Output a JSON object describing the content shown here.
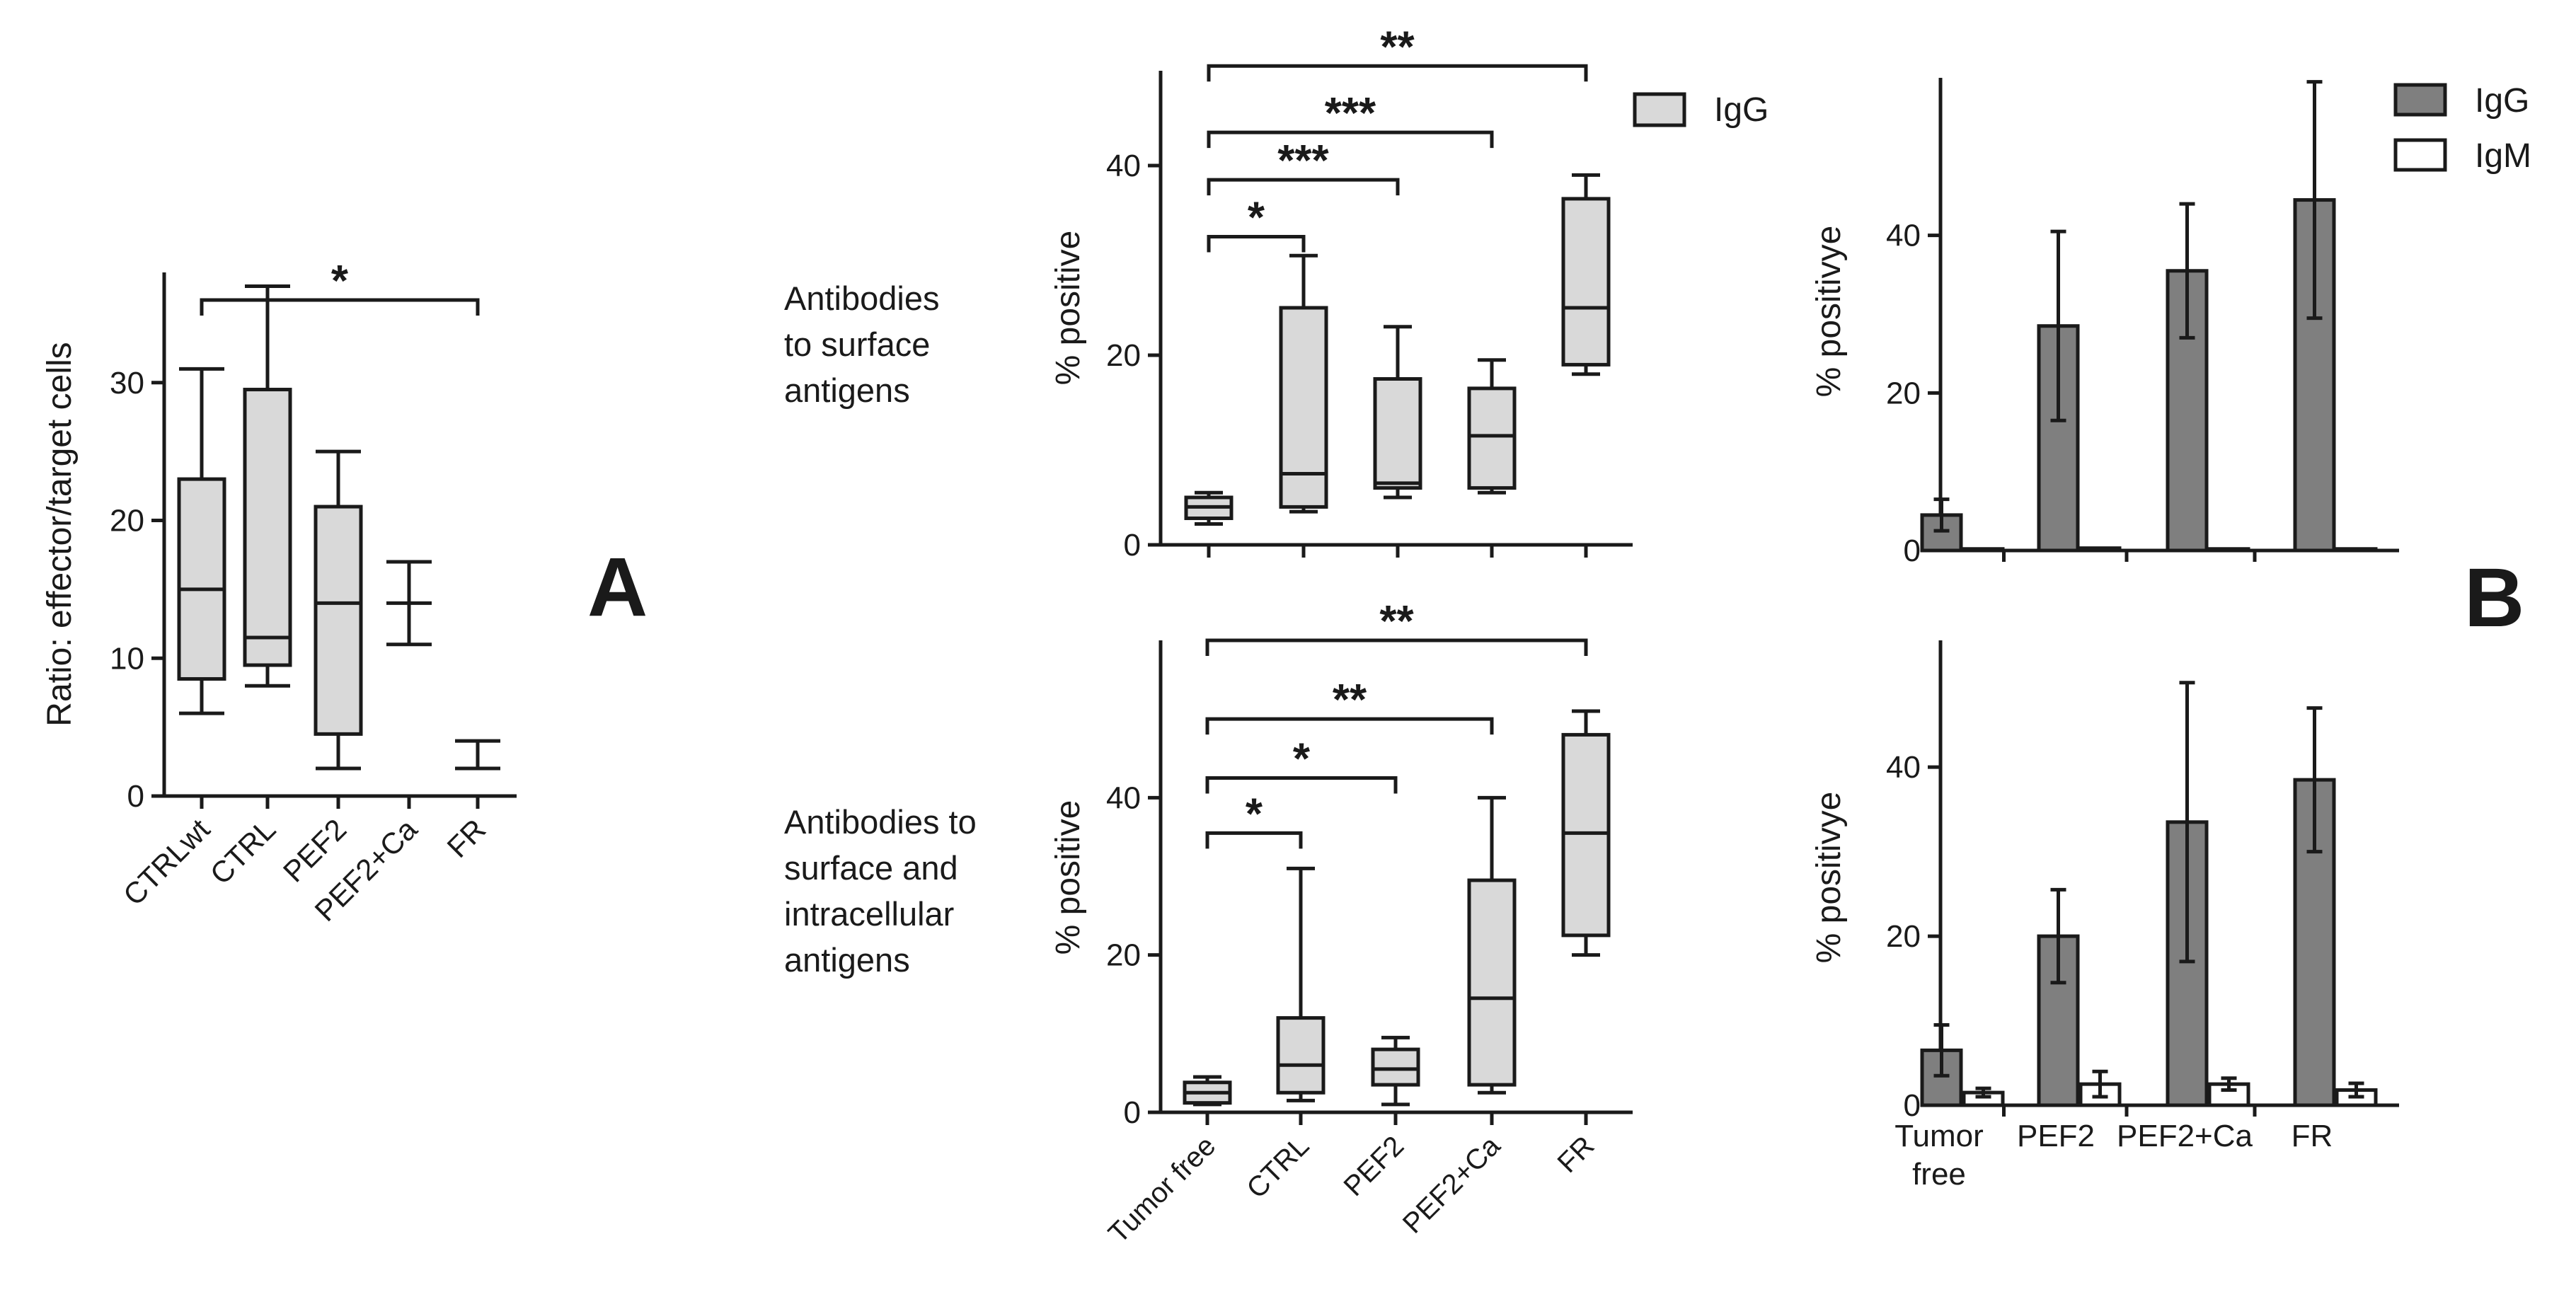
{
  "figure": {
    "panel_a_label": "A",
    "panel_b_label": "B",
    "row_labels": [
      [
        "Antibodies",
        "to surface",
        "antigens"
      ],
      [
        "Antibodies to",
        "surface and",
        "intracellular",
        "antigens"
      ]
    ]
  },
  "chart_data": [
    {
      "id": "A",
      "type": "box",
      "ylabel": "Ratio: effector/target cells",
      "ylim": [
        0,
        38
      ],
      "yticks": [
        0,
        10,
        20,
        30
      ],
      "categories": [
        "CTRLwt",
        "CTRL",
        "PEF2",
        "PEF2+Ca",
        "FR"
      ],
      "boxes": [
        {
          "min": 6,
          "q1": 8.5,
          "median": 15,
          "q3": 23,
          "max": 31
        },
        {
          "min": 8,
          "q1": 9.5,
          "median": 11.5,
          "q3": 29.5,
          "max": 37
        },
        {
          "min": 2,
          "q1": 4.5,
          "median": 14,
          "q3": 21,
          "max": 25
        },
        {
          "min": 11,
          "median": 14,
          "max": 17
        },
        {
          "min": 2,
          "median": 2,
          "max": 4
        }
      ],
      "significance": [
        {
          "from": 0,
          "to": 4,
          "label": "*",
          "level": 36
        }
      ],
      "style": {
        "box_fill": "#d9d9d9"
      }
    },
    {
      "id": "B-box-top",
      "type": "box",
      "ylabel": "% positive",
      "ylim": [
        0,
        50
      ],
      "yticks": [
        0,
        20,
        40
      ],
      "categories": [
        "Tumor free",
        "CTRL",
        "PEF2",
        "PEF2+Ca",
        "FR"
      ],
      "boxes": [
        {
          "min": 2.2,
          "q1": 2.8,
          "median": 4,
          "q3": 5,
          "max": 5.5
        },
        {
          "min": 3.5,
          "q1": 4,
          "median": 7.5,
          "q3": 25,
          "max": 30.5
        },
        {
          "min": 5,
          "q1": 6,
          "median": 6.5,
          "q3": 17.5,
          "max": 23
        },
        {
          "min": 5.5,
          "q1": 6,
          "median": 11.5,
          "q3": 16.5,
          "max": 19.5
        },
        {
          "min": 18,
          "q1": 19,
          "median": 25,
          "q3": 36.5,
          "max": 39
        }
      ],
      "legend": [
        "IgG"
      ],
      "significance": [
        {
          "from": 0,
          "to": 1,
          "label": "*",
          "level": 32.5
        },
        {
          "from": 0,
          "to": 2,
          "label": "***",
          "level": 38.5
        },
        {
          "from": 0,
          "to": 3,
          "label": "***",
          "level": 43.5
        },
        {
          "from": 0,
          "to": 4,
          "label": "**",
          "level": 50.5
        }
      ],
      "style": {
        "box_fill": "#d9d9d9"
      }
    },
    {
      "id": "B-box-bottom",
      "type": "box",
      "ylabel": "% positive",
      "ylim": [
        0,
        60
      ],
      "yticks": [
        0,
        20,
        40
      ],
      "categories": [
        "Tumor free",
        "CTRL",
        "PEF2",
        "PEF2+Ca",
        "FR"
      ],
      "boxes": [
        {
          "min": 1,
          "q1": 1.2,
          "median": 2.5,
          "q3": 3.8,
          "max": 4.5
        },
        {
          "min": 1.5,
          "q1": 2.5,
          "median": 6,
          "q3": 12,
          "max": 31
        },
        {
          "min": 1,
          "q1": 3.5,
          "median": 5.5,
          "q3": 8,
          "max": 9.5
        },
        {
          "min": 2.5,
          "q1": 3.5,
          "median": 14.5,
          "q3": 29.5,
          "max": 40
        },
        {
          "min": 20,
          "q1": 22.5,
          "median": 35.5,
          "q3": 48,
          "max": 51
        }
      ],
      "significance": [
        {
          "from": 0,
          "to": 1,
          "label": "*",
          "level": 35.5
        },
        {
          "from": 0,
          "to": 2,
          "label": "*",
          "level": 42.5
        },
        {
          "from": 0,
          "to": 3,
          "label": "**",
          "level": 50
        },
        {
          "from": 0,
          "to": 4,
          "label": "**",
          "level": 60
        }
      ],
      "style": {
        "box_fill": "#d9d9d9"
      }
    },
    {
      "id": "B-bar-top",
      "type": "bar",
      "ylabel": "% positivye",
      "ylim": [
        0,
        60
      ],
      "yticks": [
        0,
        20,
        40
      ],
      "categories": [
        "Tumor free",
        "PEF2",
        "PEF2+Ca",
        "FR"
      ],
      "series": [
        {
          "name": "IgG",
          "values": [
            4.5,
            28.5,
            35.5,
            44.5
          ],
          "err": [
            2,
            12,
            8.5,
            15
          ],
          "color": "#7f7f7f"
        },
        {
          "name": "IgM",
          "values": [
            0.2,
            0.3,
            0.2,
            0.2
          ],
          "err": [
            0,
            0,
            0,
            0
          ],
          "color": "#ffffff"
        }
      ],
      "legend": [
        "IgG",
        "IgM"
      ],
      "show_category_labels": false
    },
    {
      "id": "B-bar-bottom",
      "type": "bar",
      "ylabel": "% positivye",
      "ylim": [
        0,
        55
      ],
      "yticks": [
        0,
        20,
        40
      ],
      "categories": [
        "Tumor free",
        "PEF2",
        "PEF2+Ca",
        "FR"
      ],
      "series": [
        {
          "name": "IgG",
          "values": [
            6.5,
            20,
            33.5,
            38.5
          ],
          "err": [
            3,
            5.5,
            16.5,
            8.5
          ],
          "color": "#7f7f7f"
        },
        {
          "name": "IgM",
          "values": [
            1.5,
            2.5,
            2.5,
            1.8
          ],
          "err": [
            0.5,
            1.5,
            0.7,
            0.8
          ],
          "color": "#ffffff"
        }
      ],
      "show_category_labels": true
    }
  ]
}
